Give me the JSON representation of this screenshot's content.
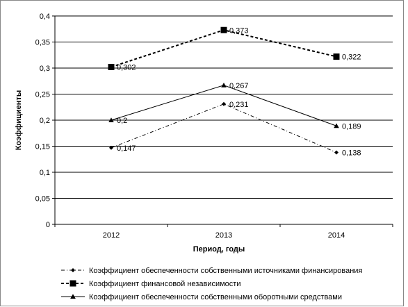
{
  "chart_data": {
    "type": "line",
    "title": "",
    "xlabel": "Период, годы",
    "ylabel": "Коэффициенты",
    "categories": [
      "2012",
      "2013",
      "2014"
    ],
    "ylim": [
      0,
      0.4
    ],
    "yticks": [
      "0",
      "0,05",
      "0,1",
      "0,15",
      "0,2",
      "0,25",
      "0,3",
      "0,35",
      "0,4"
    ],
    "grid": true,
    "legend_position": "bottom",
    "series": [
      {
        "name": "Коэффициент обеспеченности собственными источниками финансирования",
        "values": [
          0.147,
          0.231,
          0.138
        ],
        "labels": [
          "0,147",
          "0,231",
          "0,138"
        ],
        "line_style": "dash-dot",
        "marker": "diamond",
        "color": "#000000"
      },
      {
        "name": "Коэффициент финансовой независимости",
        "values": [
          0.302,
          0.373,
          0.322
        ],
        "labels": [
          "0,302",
          "0,373",
          "0,322"
        ],
        "line_style": "dotted-thick",
        "marker": "square",
        "color": "#000000"
      },
      {
        "name": "Коэффициент обеспеченности собственными оборотными средствами",
        "values": [
          0.2,
          0.267,
          0.189
        ],
        "labels": [
          "0,2",
          "0,267",
          "0,189"
        ],
        "line_style": "solid",
        "marker": "triangle",
        "color": "#000000"
      }
    ]
  }
}
